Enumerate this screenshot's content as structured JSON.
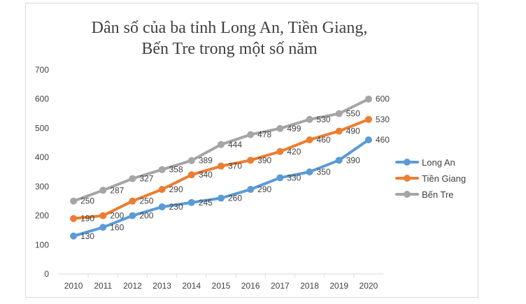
{
  "chart_data": {
    "type": "line",
    "title_lines": [
      "Dân số của ba tỉnh Long An, Tiền Giang,",
      "Bến Tre trong một số năm"
    ],
    "xlabel": "",
    "ylabel": "",
    "categories": [
      "2010",
      "2011",
      "2012",
      "2013",
      "2014",
      "2015",
      "2016",
      "2017",
      "2018",
      "2019",
      "2020"
    ],
    "ylim": [
      0,
      700
    ],
    "yticks": [
      0,
      100,
      200,
      300,
      400,
      500,
      600,
      700
    ],
    "grid": false,
    "legend_position": "right",
    "series": [
      {
        "name": "Long An",
        "color": "#5b9bd5",
        "values": [
          130,
          160,
          200,
          230,
          245,
          260,
          290,
          330,
          350,
          390,
          460
        ],
        "labels": [
          "130",
          "160",
          "200",
          "230",
          "245",
          "260",
          "290",
          "330",
          "350",
          "390",
          "460"
        ]
      },
      {
        "name": "Tiền Giang",
        "color": "#ed7d31",
        "values": [
          190,
          200,
          250,
          290,
          340,
          370,
          390,
          420,
          460,
          490,
          530
        ],
        "labels": [
          "190",
          "200",
          "250",
          "290",
          "340",
          "370",
          "390",
          "420",
          "460",
          "490",
          "530"
        ]
      },
      {
        "name": "Bến Tre",
        "color": "#a5a5a5",
        "values": [
          250,
          287,
          327,
          358,
          389,
          444,
          478,
          499,
          530,
          550,
          600
        ],
        "labels": [
          "250",
          "287",
          "327",
          "358",
          "389",
          "444",
          "478",
          "499",
          "530",
          "550",
          "600"
        ]
      }
    ]
  }
}
